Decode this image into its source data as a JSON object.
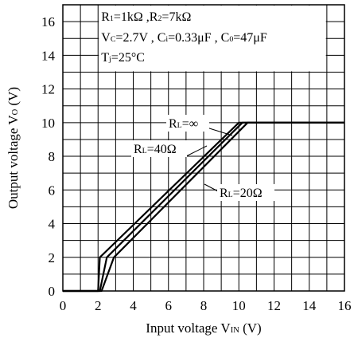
{
  "chart_data": {
    "type": "line",
    "xlabel": {
      "main": "Input voltage V",
      "sub": "IN",
      "unit": " (V)"
    },
    "ylabel": {
      "main": "Output voltage V",
      "sub": "O",
      "unit": " (V)"
    },
    "xlim": [
      0,
      16
    ],
    "ylim": [
      0,
      17
    ],
    "xticks": [
      "0",
      "2",
      "4",
      "6",
      "8",
      "10",
      "12",
      "14",
      "16"
    ],
    "yticks": [
      "0",
      "2",
      "4",
      "6",
      "8",
      "10",
      "12",
      "14",
      "16"
    ],
    "grid": true,
    "conditions": [
      [
        {
          "t": "R"
        },
        {
          "t": "1",
          "sub": true
        },
        {
          "t": "=1kΩ ,R"
        },
        {
          "t": "2",
          "sub": true
        },
        {
          "t": "=7kΩ"
        }
      ],
      [
        {
          "t": "V"
        },
        {
          "t": "C",
          "sub": true
        },
        {
          "t": "=2.7V , C"
        },
        {
          "t": "i",
          "sub": true
        },
        {
          "t": "=0.33μF , C"
        },
        {
          "t": "0",
          "sub": true
        },
        {
          "t": "=47μF"
        }
      ],
      [
        {
          "t": "T"
        },
        {
          "t": "j",
          "sub": true
        },
        {
          "t": "=25°C"
        }
      ]
    ],
    "series": [
      {
        "name": [
          {
            "t": "R"
          },
          {
            "t": "L",
            "sub": true
          },
          {
            "t": "=∞"
          }
        ],
        "x": [
          0,
          2.0,
          2.1,
          10.0,
          16
        ],
        "y": [
          0,
          0,
          2.0,
          10.0,
          10.0
        ]
      },
      {
        "name": [
          {
            "t": "R"
          },
          {
            "t": "L",
            "sub": true
          },
          {
            "t": "=40Ω"
          }
        ],
        "x": [
          0,
          2.1,
          2.5,
          10.2,
          16
        ],
        "y": [
          0,
          0,
          2.0,
          10.0,
          10.0
        ]
      },
      {
        "name": [
          {
            "t": "R"
          },
          {
            "t": "L",
            "sub": true
          },
          {
            "t": "=20Ω"
          }
        ],
        "x": [
          0,
          2.2,
          2.9,
          10.5,
          16
        ],
        "y": [
          0,
          0,
          2.0,
          10.0,
          10.0
        ]
      }
    ]
  }
}
